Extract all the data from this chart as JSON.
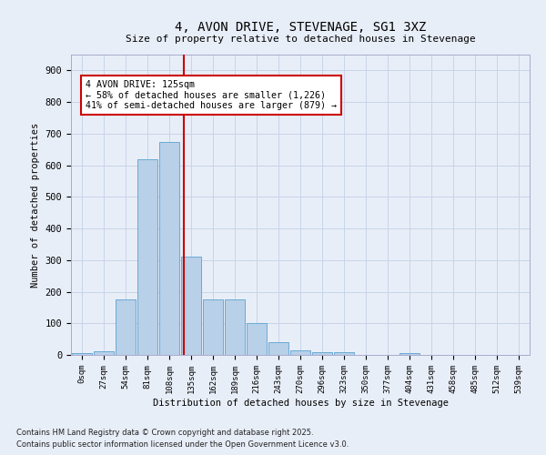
{
  "title": "4, AVON DRIVE, STEVENAGE, SG1 3XZ",
  "subtitle": "Size of property relative to detached houses in Stevenage",
  "xlabel": "Distribution of detached houses by size in Stevenage",
  "ylabel": "Number of detached properties",
  "bar_color": "#b8d0e8",
  "bar_edge_color": "#6aaad4",
  "background_color": "#e8eef8",
  "grid_color": "#c8d4e8",
  "categories": [
    "0sqm",
    "27sqm",
    "54sqm",
    "81sqm",
    "108sqm",
    "135sqm",
    "162sqm",
    "189sqm",
    "216sqm",
    "243sqm",
    "270sqm",
    "296sqm",
    "323sqm",
    "350sqm",
    "377sqm",
    "404sqm",
    "431sqm",
    "458sqm",
    "485sqm",
    "512sqm",
    "539sqm"
  ],
  "values": [
    5,
    12,
    175,
    620,
    675,
    310,
    175,
    175,
    100,
    40,
    15,
    10,
    10,
    0,
    0,
    7,
    0,
    0,
    0,
    0,
    0
  ],
  "ylim": [
    0,
    950
  ],
  "yticks": [
    0,
    100,
    200,
    300,
    400,
    500,
    600,
    700,
    800,
    900
  ],
  "property_line_x": 4.67,
  "annotation_title": "4 AVON DRIVE: 125sqm",
  "annotation_line1": "← 58% of detached houses are smaller (1,226)",
  "annotation_line2": "41% of semi-detached houses are larger (879) →",
  "annotation_box_color": "#ffffff",
  "annotation_box_edge": "#cc0000",
  "annotation_text_color": "#000000",
  "line_color": "#cc0000",
  "title_fontsize": 10,
  "subtitle_fontsize": 8,
  "footer1": "Contains HM Land Registry data © Crown copyright and database right 2025.",
  "footer2": "Contains public sector information licensed under the Open Government Licence v3.0."
}
